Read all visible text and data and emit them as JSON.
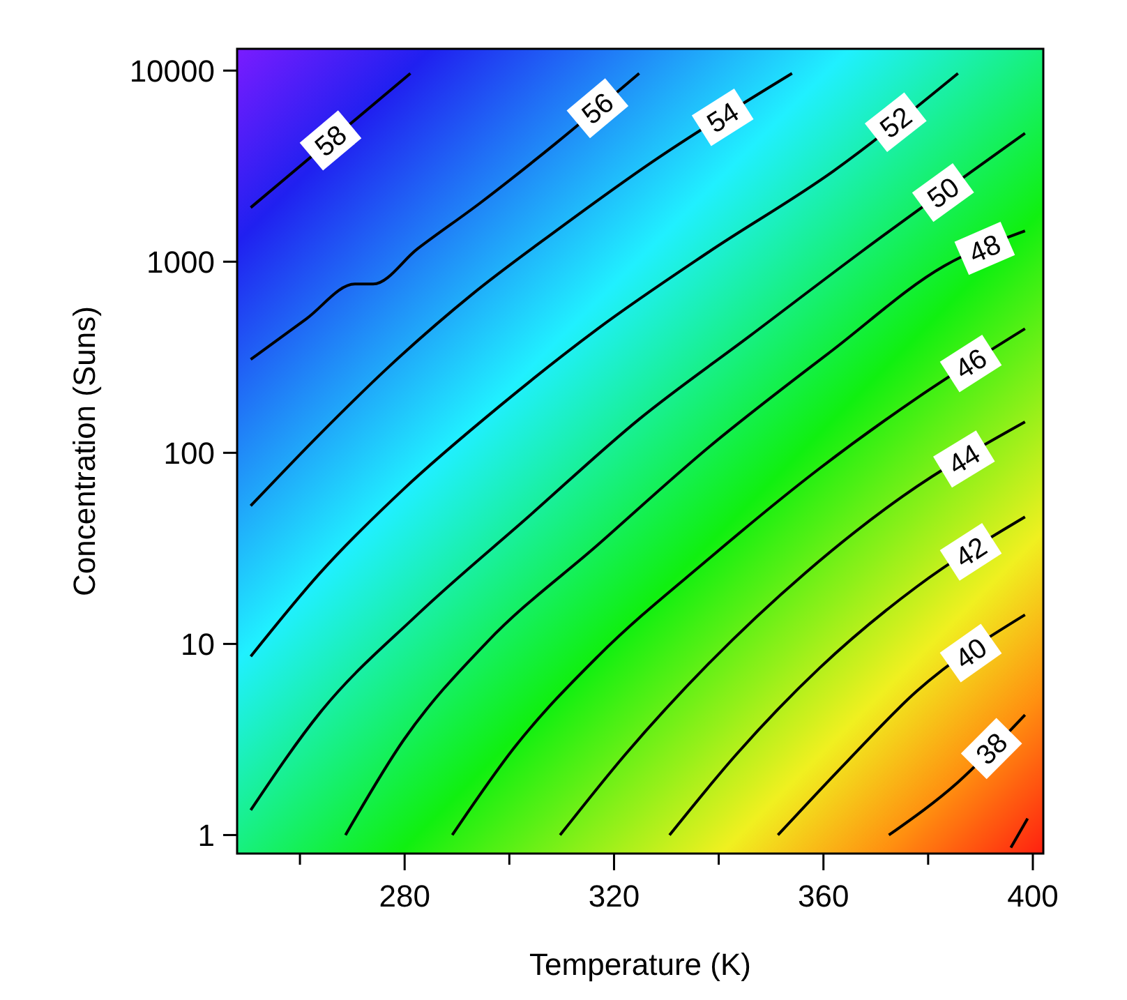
{
  "chart_data": {
    "type": "line",
    "xlabel": "Temperature (K)",
    "ylabel": "Concentration (Suns)",
    "log": "y",
    "grid": false,
    "marker": "none",
    "line_style": "solid",
    "xlim": [
      248,
      402
    ],
    "xticks": [
      {
        "value": 260,
        "label": null
      },
      280,
      {
        "value": 300,
        "label": null
      },
      320,
      {
        "value": 340,
        "label": null
      },
      360,
      {
        "value": 380,
        "label": null
      },
      400
    ],
    "ylim": [
      0.8,
      13000
    ],
    "yticks": [
      1,
      10,
      100,
      1000,
      10000
    ],
    "series": [
      {
        "name": "58",
        "color": "#000000",
        "x": [
          250.6,
          281.1
        ],
        "values": [
          1920,
          9670
        ]
      },
      {
        "name": "56",
        "color": "#000000",
        "x": [
          250.6,
          261.2,
          270.5,
          274.0,
          282.4,
          294.4,
          308.9,
          324.8
        ],
        "values": [
          308,
          502,
          764,
          764,
          1164,
          2026,
          4170,
          9670
        ]
      },
      {
        "name": "54",
        "color": "#000000",
        "x": [
          250.6,
          263.9,
          277.1,
          293.0,
          308.9,
          327.5,
          354.0
        ],
        "values": [
          52.8,
          126,
          284,
          679,
          1449,
          3357,
          9670
        ]
      },
      {
        "name": "52",
        "color": "#000000",
        "x": [
          250.6,
          263.9,
          279.8,
          298.3,
          316.9,
          338.1,
          361.9,
          385.7
        ],
        "values": [
          8.6,
          23.6,
          64.6,
          177,
          446,
          1125,
          2980,
          9670
        ]
      },
      {
        "name": "50",
        "color": "#000000",
        "x": [
          250.6,
          263.9,
          282.4,
          303.6,
          324.8,
          346.0,
          367.2,
          398.5
        ],
        "values": [
          1.35,
          4.39,
          14.2,
          46.2,
          150,
          410,
          1125,
          4700
        ]
      },
      {
        "name": "48",
        "color": "#000000",
        "x": [
          268.7,
          279.8,
          295.7,
          316.9,
          338.1,
          361.9,
          383.1,
          398.5
        ],
        "values": [
          1,
          3.14,
          10.2,
          33,
          107,
          347,
          951,
          1449
        ]
      },
      {
        "name": "46",
        "color": "#000000",
        "x": [
          289.1,
          301.0,
          316.9,
          338.1,
          359.3,
          377.8,
          398.5
        ],
        "values": [
          1,
          2.88,
          8.6,
          27.9,
          83,
          193,
          446
        ]
      },
      {
        "name": "44",
        "color": "#000000",
        "x": [
          309.7,
          322.2,
          338.1,
          356.6,
          375.2,
          398.5
        ],
        "values": [
          1,
          2.65,
          7.9,
          23.6,
          59.4,
          145
        ]
      },
      {
        "name": "42",
        "color": "#000000",
        "x": [
          330.6,
          343.4,
          359.3,
          377.8,
          398.5
        ],
        "values": [
          1,
          2.65,
          7.5,
          19.9,
          46.2
        ]
      },
      {
        "name": "40",
        "color": "#000000",
        "x": [
          351.3,
          364.6,
          377.8,
          398.5
        ],
        "values": [
          1,
          2.44,
          5.65,
          14.2
        ]
      },
      {
        "name": "38",
        "color": "#000000",
        "x": [
          372.5,
          385.7,
          398.5
        ],
        "values": [
          1,
          1.89,
          4.25
        ]
      },
      {
        "color": "#000000",
        "x": [
          395.8,
          399.0
        ],
        "values": [
          0.86,
          1.22
        ]
      }
    ]
  }
}
